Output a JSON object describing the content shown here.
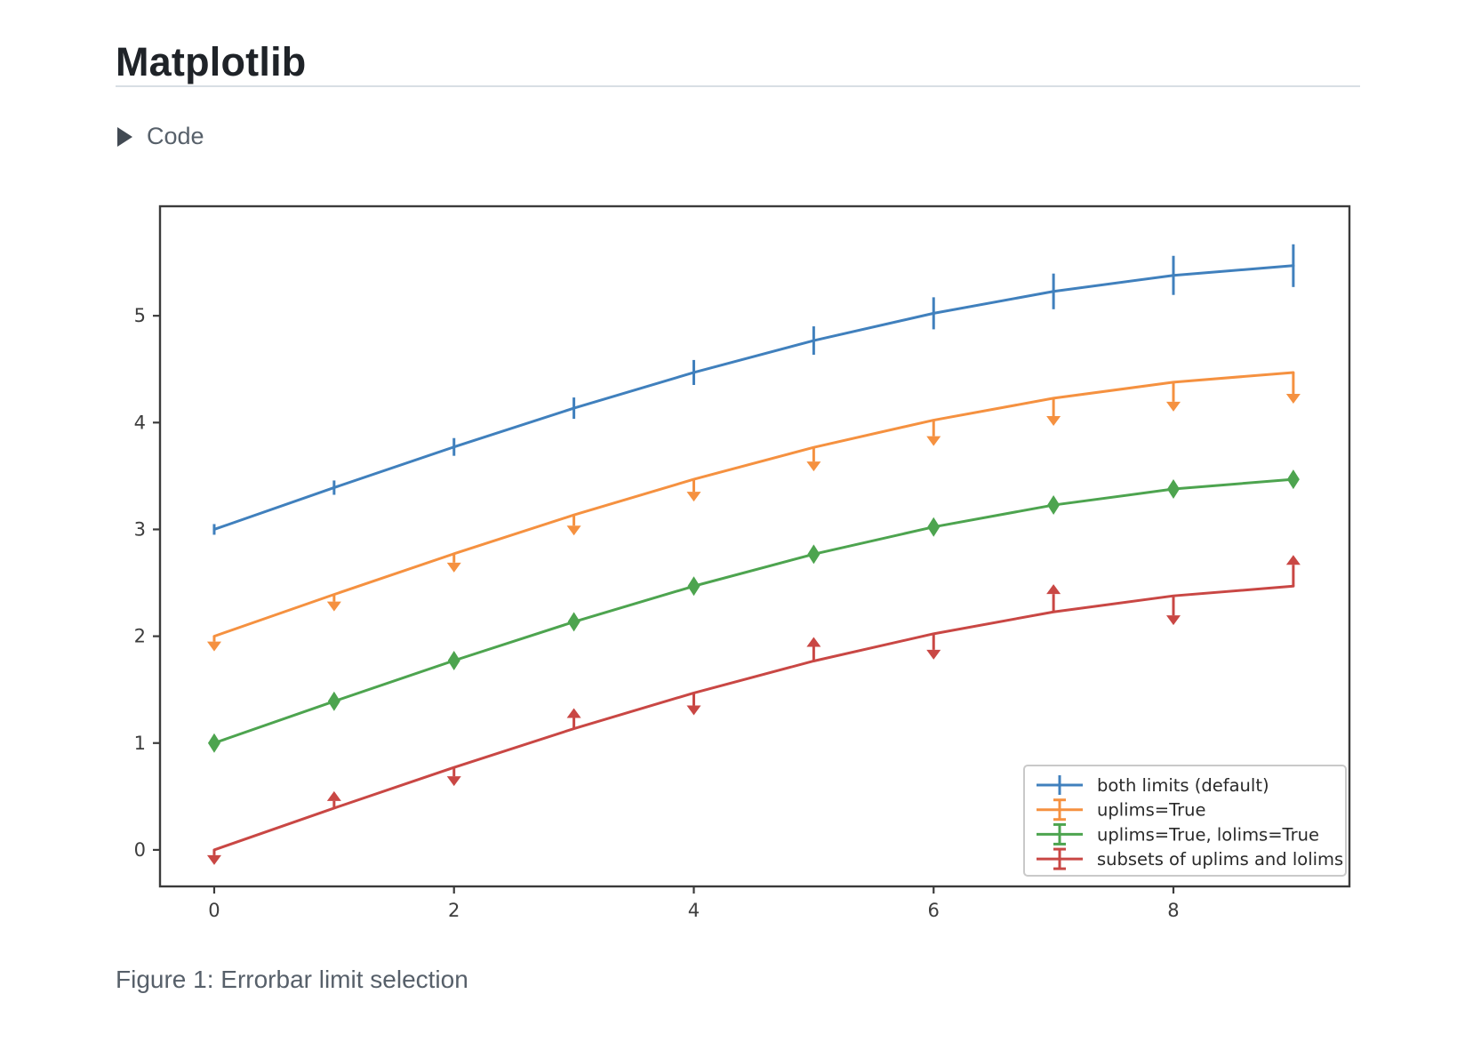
{
  "page": {
    "title": "Matplotlib",
    "code_toggle_label": "Code",
    "figure_caption": "Figure 1: Errorbar limit selection"
  },
  "chart_data": {
    "type": "line",
    "title": "",
    "xlabel": "",
    "ylabel": "",
    "x": [
      0,
      1,
      2,
      3,
      4,
      5,
      6,
      7,
      8,
      9
    ],
    "yerr": [
      0.05,
      0.067,
      0.083,
      0.1,
      0.117,
      0.133,
      0.15,
      0.167,
      0.183,
      0.2
    ],
    "series": [
      {
        "name": "both limits (default)",
        "color": "#4080bd",
        "uplims": false,
        "lolims": false,
        "values": [
          3.0,
          3.391,
          3.772,
          4.135,
          4.469,
          4.768,
          5.023,
          5.228,
          5.378,
          5.469
        ]
      },
      {
        "name": "uplims=True",
        "color": "#f59140",
        "uplims": true,
        "lolims": false,
        "values": [
          2.0,
          2.391,
          2.772,
          3.135,
          3.469,
          3.768,
          4.023,
          4.228,
          4.378,
          4.469
        ]
      },
      {
        "name": "uplims=True, lolims=True",
        "color": "#4da44f",
        "uplims": true,
        "lolims": true,
        "values": [
          1.0,
          1.391,
          1.772,
          2.135,
          2.469,
          2.768,
          3.023,
          3.228,
          3.378,
          3.469
        ]
      },
      {
        "name": "subsets of uplims and lolims",
        "color": "#c94744",
        "uplims": [
          true,
          false,
          true,
          false,
          true,
          false,
          true,
          false,
          true,
          false
        ],
        "lolims": [
          false,
          true,
          false,
          true,
          false,
          true,
          false,
          true,
          false,
          true
        ],
        "values": [
          0.0,
          0.391,
          0.772,
          1.135,
          1.469,
          1.768,
          2.023,
          2.228,
          2.378,
          2.469
        ]
      }
    ],
    "xticks": [
      0,
      2,
      4,
      6,
      8
    ],
    "yticks": [
      0,
      1,
      2,
      3,
      4,
      5
    ],
    "xlim": [
      -0.452,
      9.468
    ],
    "ylim": [
      -0.342,
      6.025
    ],
    "grid": false,
    "legend_position": "lower right",
    "axis_color": "#3b3b3b",
    "tick_label_color": "#3d3d3d",
    "legend_text_color": "#2a2a2a",
    "legend_border_color": "#c9c9c9"
  }
}
